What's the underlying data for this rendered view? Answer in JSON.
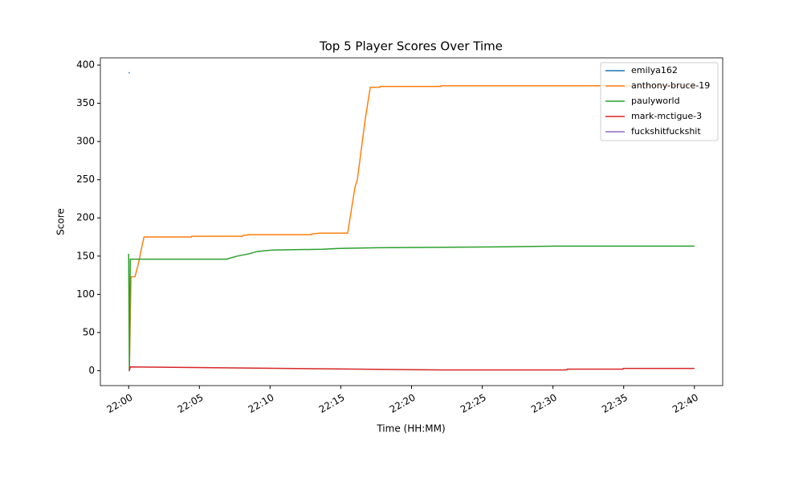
{
  "chart_data": {
    "type": "line",
    "title": "Top 5 Player Scores Over Time",
    "xlabel": "Time (HH:MM)",
    "ylabel": "Score",
    "xlim": [
      "21:58",
      "22:42"
    ],
    "xticks": [
      "22:00",
      "22:05",
      "22:10",
      "22:15",
      "22:20",
      "22:25",
      "22:30",
      "22:35",
      "22:40"
    ],
    "ylim": [
      -19.5,
      409.5
    ],
    "yticks": [
      0,
      50,
      100,
      150,
      200,
      250,
      300,
      350,
      400
    ],
    "legend": "upper right",
    "grid": false,
    "series": [
      {
        "name": "emilya162",
        "color": "#1f77b4",
        "x": [
          "22:00:00",
          "22:00:05"
        ],
        "values": [
          390,
          390
        ]
      },
      {
        "name": "anthony-bruce-19",
        "color": "#ff7f0e",
        "x": [
          "22:00:03",
          "22:00:10",
          "22:00:27",
          "22:00:41",
          "22:00:51",
          "22:01:05",
          "22:04:26",
          "22:04:27",
          "22:08:03",
          "22:08:04",
          "22:08:31",
          "22:12:56",
          "22:12:57",
          "22:13:30",
          "22:15:29",
          "22:16:00",
          "22:16:10",
          "22:16:44",
          "22:17:05",
          "22:17:46",
          "22:17:47",
          "22:22:04",
          "22:22:05",
          "22:40:00"
        ],
        "values": [
          0,
          123,
          123,
          140,
          155,
          175,
          175,
          176,
          176,
          177,
          178,
          178,
          179,
          180,
          180,
          240,
          250,
          330,
          371,
          371,
          372,
          372,
          373,
          373
        ]
      },
      {
        "name": "paulyworld",
        "color": "#2ca02c",
        "x": [
          "22:00:00",
          "22:00:03",
          "22:00:07",
          "22:06:55",
          "22:07:40",
          "22:08:31",
          "22:09:05",
          "22:09:39",
          "22:10:13",
          "22:13:44",
          "22:14:52",
          "22:17:35",
          "22:25:46",
          "22:30:11",
          "22:40:00"
        ],
        "values": [
          153,
          0,
          146,
          146,
          150,
          153,
          156,
          157,
          158,
          159,
          160,
          161,
          162,
          163,
          163
        ]
      },
      {
        "name": "mark-mctigue-3",
        "color": "#d62728",
        "x": [
          "22:00:03",
          "22:00:07",
          "22:22:08",
          "22:30:59",
          "22:31:00",
          "22:34:57",
          "22:34:58",
          "22:40:00"
        ],
        "values": [
          0,
          5,
          1,
          1,
          2,
          2,
          3,
          3
        ]
      },
      {
        "name": "fuckshitfuckshit",
        "color": "#9467bd",
        "x": [
          "22:00:00",
          "22:00:05"
        ],
        "values": [
          0,
          0
        ]
      }
    ]
  }
}
